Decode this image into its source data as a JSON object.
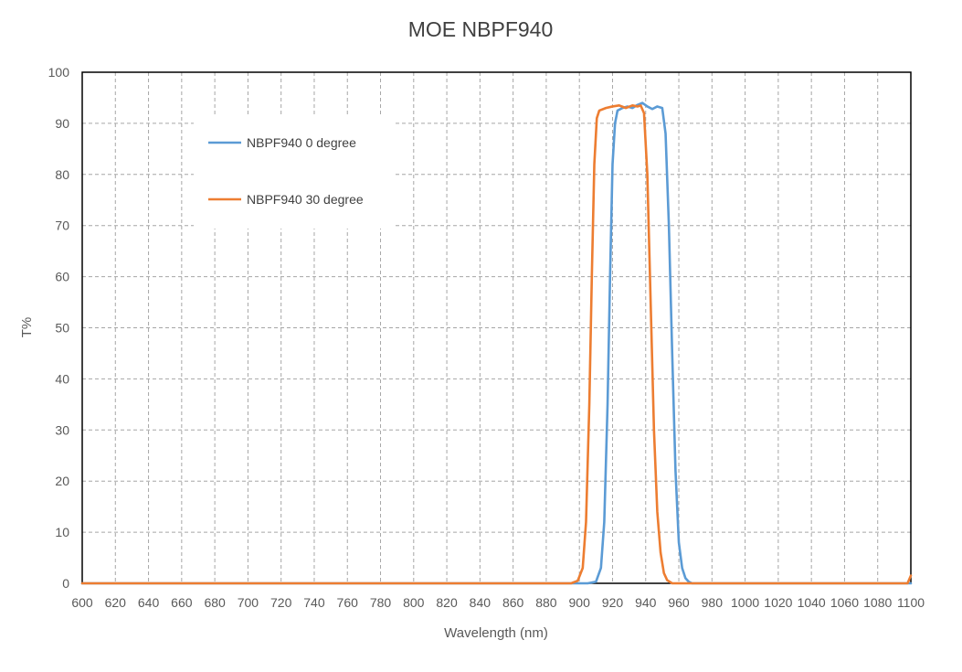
{
  "chart_data": {
    "type": "line",
    "title": "MOE NBPF940",
    "xlabel": "Wavelength (nm)",
    "ylabel": "T%",
    "xlim": [
      600,
      1100
    ],
    "ylim": [
      0,
      100
    ],
    "x_ticks": [
      "600",
      "620",
      "640",
      "660",
      "680",
      "700",
      "720",
      "740",
      "760",
      "780",
      "800",
      "820",
      "840",
      "860",
      "880",
      "900",
      "920",
      "940",
      "960",
      "980",
      "1000",
      "1020",
      "1040",
      "1060",
      "1080",
      "1100"
    ],
    "y_ticks": [
      "0",
      "10",
      "20",
      "30",
      "40",
      "50",
      "60",
      "70",
      "80",
      "90",
      "100"
    ],
    "grid": true,
    "legend_position": "top-left",
    "series": [
      {
        "name": "NBPF940 0 degree",
        "color": "#5B9BD5",
        "points": [
          [
            600,
            0
          ],
          [
            905,
            0
          ],
          [
            910,
            0.3
          ],
          [
            913,
            3
          ],
          [
            915,
            12
          ],
          [
            917,
            35
          ],
          [
            918.5,
            60
          ],
          [
            920,
            82
          ],
          [
            921.5,
            90
          ],
          [
            923,
            92.5
          ],
          [
            926,
            93
          ],
          [
            929,
            93.3
          ],
          [
            932,
            93
          ],
          [
            935,
            93.6
          ],
          [
            938,
            94
          ],
          [
            941,
            93.3
          ],
          [
            944,
            92.8
          ],
          [
            947,
            93.3
          ],
          [
            950,
            93
          ],
          [
            952,
            88
          ],
          [
            954,
            70
          ],
          [
            956,
            45
          ],
          [
            958,
            22
          ],
          [
            960,
            8
          ],
          [
            962,
            3
          ],
          [
            964,
            1
          ],
          [
            966,
            0.3
          ],
          [
            968,
            0
          ],
          [
            1100,
            0
          ]
        ]
      },
      {
        "name": "NBPF940 30 degree",
        "color": "#ED7D31",
        "points": [
          [
            600,
            0
          ],
          [
            895,
            0
          ],
          [
            899,
            0.5
          ],
          [
            902,
            3
          ],
          [
            904,
            12
          ],
          [
            906,
            35
          ],
          [
            907.5,
            60
          ],
          [
            909,
            82
          ],
          [
            910.5,
            91
          ],
          [
            912,
            92.5
          ],
          [
            916,
            93
          ],
          [
            920,
            93.3
          ],
          [
            924,
            93.5
          ],
          [
            928,
            93
          ],
          [
            932,
            93.5
          ],
          [
            935,
            93.3
          ],
          [
            937,
            93.5
          ],
          [
            939,
            92
          ],
          [
            941,
            80
          ],
          [
            943,
            55
          ],
          [
            945,
            30
          ],
          [
            947,
            14
          ],
          [
            949,
            6
          ],
          [
            951,
            2
          ],
          [
            953,
            0.6
          ],
          [
            956,
            0
          ],
          [
            1098,
            0
          ],
          [
            1100,
            1.5
          ]
        ]
      }
    ]
  }
}
